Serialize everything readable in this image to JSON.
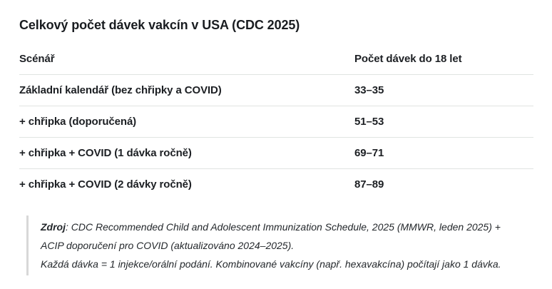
{
  "title": "Celkový počet dávek vakcín v USA (CDC 2025)",
  "table": {
    "columns": [
      "Scénář",
      "Počet dávek do 18 let"
    ],
    "rows": [
      {
        "scenario": "Základní kalendář (bez chřipky a COVID)",
        "doses": "33–35"
      },
      {
        "scenario": "+ chřipka (doporučená)",
        "doses": "51–53"
      },
      {
        "scenario": "+ chřipka + COVID (1 dávka ročně)",
        "doses": "69–71"
      },
      {
        "scenario": "+ chřipka + COVID (2 dávky ročně)",
        "doses": "87–89"
      }
    ]
  },
  "footer": {
    "source_label": "Zdroj",
    "source_text": ": CDC Recommended Child and Adolescent Immunization Schedule, 2025 (MMWR, leden 2025) + ACIP doporučení pro COVID (aktualizováno 2024–2025).",
    "note": "Každá dávka = 1 injekce/orální podání. Kombinované vakcíny (např. hexavakcína) počítají jako 1 dávka."
  }
}
